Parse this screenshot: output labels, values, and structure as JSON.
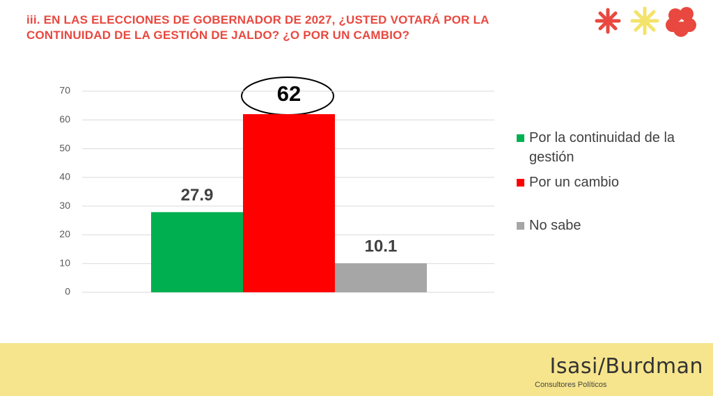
{
  "title": "iii. EN LAS ELECCIONES DE GOBERNADOR DE 2027, ¿USTED VOTARÁ POR LA CONTINUIDAD DE LA GESTIÓN DE JALDO? ¿O POR UN CAMBIO?",
  "chart_data": {
    "type": "bar",
    "categories": [
      null
    ],
    "series": [
      {
        "name": "Por la continuidad de la gestión",
        "color": "#00b050",
        "values": [
          27.9
        ]
      },
      {
        "name": "Por un cambio",
        "color": "#ff0000",
        "values": [
          62
        ]
      },
      {
        "name": "No sabe",
        "color": "#a6a6a6",
        "values": [
          10.1
        ]
      }
    ],
    "ylim": [
      0,
      70
    ],
    "yticks": [
      0,
      10,
      20,
      30,
      40,
      50,
      60,
      70
    ],
    "grid": true,
    "legend": "right"
  },
  "footer": {
    "brand": "Isasi/Burdman",
    "tagline": "Consultores Políticos"
  }
}
